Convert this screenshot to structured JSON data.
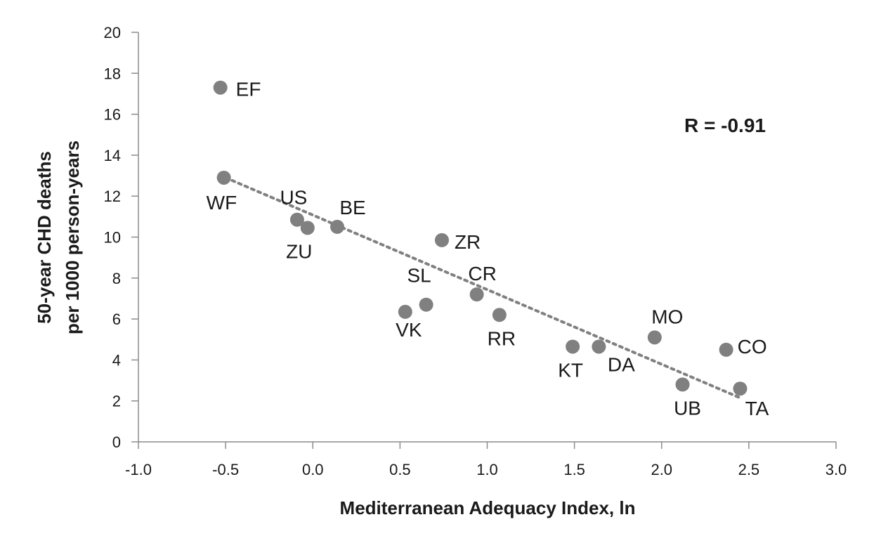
{
  "chart_data": {
    "type": "scatter",
    "xlabel": "Mediterranean Adequacy Index, ln",
    "ylabel_line1": "50-year CHD deaths",
    "ylabel_line2": "per 1000 person-years",
    "xlim": [
      -1.0,
      3.0
    ],
    "ylim": [
      0,
      20
    ],
    "x_ticks": [
      -1.0,
      -0.5,
      0.0,
      0.5,
      1.0,
      1.5,
      2.0,
      2.5,
      3.0
    ],
    "x_tick_labels": [
      "-1.0",
      "-0.5",
      "0.0",
      "0.5",
      "1.0",
      "1.5",
      "2.0",
      "2.5",
      "3.0"
    ],
    "y_ticks": [
      0,
      2,
      4,
      6,
      8,
      10,
      12,
      14,
      16,
      18,
      20
    ],
    "y_tick_labels": [
      "0",
      "2",
      "4",
      "6",
      "8",
      "10",
      "12",
      "14",
      "16",
      "18",
      "20"
    ],
    "grid": false,
    "marker_color": "#808080",
    "trendline_color": "#808080",
    "trendline": {
      "style": "dotted",
      "x": [
        -0.5,
        2.45
      ],
      "y": [
        12.9,
        2.15
      ]
    },
    "annotation": "R = -0.91",
    "points": [
      {
        "label": "EF",
        "x": -0.53,
        "y": 17.3
      },
      {
        "label": "WF",
        "x": -0.51,
        "y": 12.9
      },
      {
        "label": "US",
        "x": -0.09,
        "y": 10.85
      },
      {
        "label": "ZU",
        "x": -0.03,
        "y": 10.45
      },
      {
        "label": "BE",
        "x": 0.14,
        "y": 10.5
      },
      {
        "label": "ZR",
        "x": 0.74,
        "y": 9.85
      },
      {
        "label": "SL",
        "x": 0.65,
        "y": 6.7
      },
      {
        "label": "VK",
        "x": 0.53,
        "y": 6.35
      },
      {
        "label": "CR",
        "x": 0.94,
        "y": 7.2
      },
      {
        "label": "RR",
        "x": 1.07,
        "y": 6.2
      },
      {
        "label": "KT",
        "x": 1.49,
        "y": 4.65
      },
      {
        "label": "DA",
        "x": 1.64,
        "y": 4.65
      },
      {
        "label": "MO",
        "x": 1.96,
        "y": 5.1
      },
      {
        "label": "UB",
        "x": 2.12,
        "y": 2.8
      },
      {
        "label": "CO",
        "x": 2.37,
        "y": 4.5
      },
      {
        "label": "TA",
        "x": 2.45,
        "y": 2.6
      }
    ]
  }
}
